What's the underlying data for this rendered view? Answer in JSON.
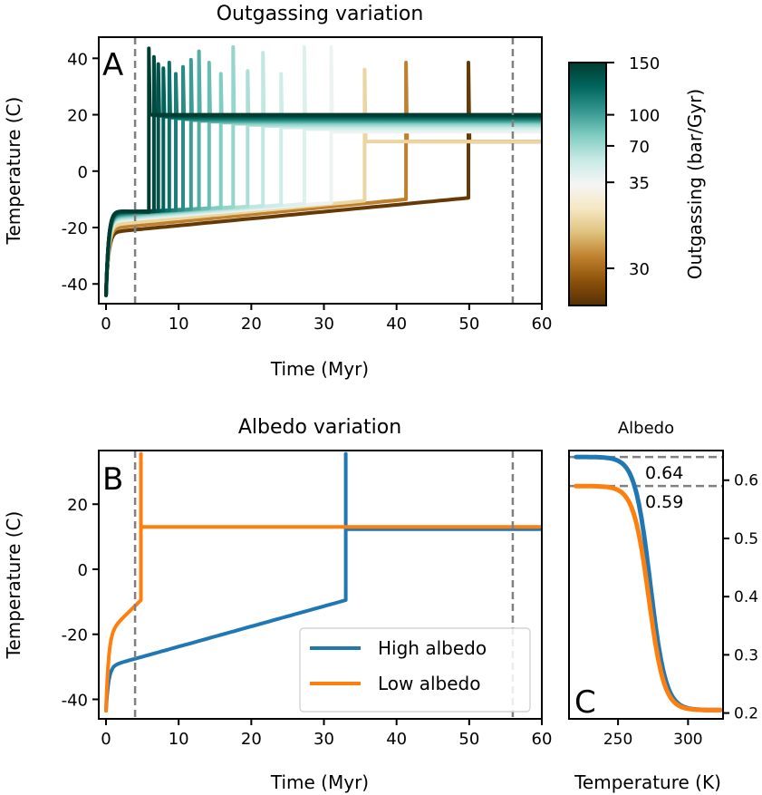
{
  "chart_data": [
    {
      "id": "A",
      "type": "line",
      "panel_label": "A",
      "title": "Outgassing variation",
      "xlabel": "Time (Myr)",
      "ylabel": "Temperature (C)",
      "xlim": [
        -1.0,
        60
      ],
      "ylim": [
        -47,
        47.5
      ],
      "xticks": [
        0,
        10,
        20,
        30,
        40,
        50,
        60
      ],
      "yticks": [
        -40,
        -20,
        0,
        20,
        40
      ],
      "vlines": [
        4,
        56
      ],
      "colorbar": {
        "label": "Outgassing (bar/Gyr)",
        "ticks": [
          {
            "label": "150",
            "pos": 1.0
          },
          {
            "label": "100",
            "pos": 0.785
          },
          {
            "label": "70",
            "pos": 0.657
          },
          {
            "label": "35",
            "pos": 0.507
          },
          {
            "label": "30",
            "pos": 0.153
          }
        ],
        "colormap": [
          "#003c30",
          "#01665e",
          "#35978f",
          "#80cdc1",
          "#c7eae5",
          "#f5f5f5",
          "#f6e8c3",
          "#dfc27d",
          "#bf812d",
          "#8c510a",
          "#543005"
        ]
      },
      "series_note": "Each run: warm-up curve from -44 C to the snowball-exit time, spike to peak, then plateau. Color encodes outgassing rate (colorbar position).",
      "series": [
        {
          "cpos": 1.0,
          "t_jump": 5.9,
          "t_pre": -14.5,
          "peak": 43.5,
          "plateau": 20.0
        },
        {
          "cpos": 0.97,
          "t_jump": 6.6,
          "t_pre": -14.3,
          "peak": 40.5,
          "plateau": 19.8
        },
        {
          "cpos": 0.94,
          "t_jump": 7.2,
          "t_pre": -14.2,
          "peak": 38.0,
          "plateau": 19.6
        },
        {
          "cpos": 0.91,
          "t_jump": 7.9,
          "t_pre": -14.0,
          "peak": 36.5,
          "plateau": 19.3
        },
        {
          "cpos": 0.88,
          "t_jump": 8.7,
          "t_pre": -13.9,
          "peak": 38.5,
          "plateau": 19.0
        },
        {
          "cpos": 0.85,
          "t_jump": 9.6,
          "t_pre": -13.8,
          "peak": 34.5,
          "plateau": 18.7
        },
        {
          "cpos": 0.82,
          "t_jump": 10.6,
          "t_pre": -13.6,
          "peak": 37.0,
          "plateau": 18.4
        },
        {
          "cpos": 0.79,
          "t_jump": 11.7,
          "t_pre": -13.5,
          "peak": 39.5,
          "plateau": 18.1
        },
        {
          "cpos": 0.76,
          "t_jump": 12.8,
          "t_pre": -13.3,
          "peak": 42.5,
          "plateau": 17.8
        },
        {
          "cpos": 0.73,
          "t_jump": 14.2,
          "t_pre": -13.1,
          "peak": 38.5,
          "plateau": 17.5
        },
        {
          "cpos": 0.7,
          "t_jump": 15.8,
          "t_pre": -12.9,
          "peak": 34.5,
          "plateau": 17.2
        },
        {
          "cpos": 0.67,
          "t_jump": 17.5,
          "t_pre": -12.7,
          "peak": 44.0,
          "plateau": 16.8
        },
        {
          "cpos": 0.64,
          "t_jump": 19.5,
          "t_pre": -12.5,
          "peak": 35.5,
          "plateau": 16.4
        },
        {
          "cpos": 0.61,
          "t_jump": 21.6,
          "t_pre": -12.3,
          "peak": 42.0,
          "plateau": 16.0
        },
        {
          "cpos": 0.58,
          "t_jump": 24.1,
          "t_pre": -12.0,
          "peak": 34.5,
          "plateau": 15.5
        },
        {
          "cpos": 0.55,
          "t_jump": 27.3,
          "t_pre": -11.6,
          "peak": 44.0,
          "plateau": 14.9
        },
        {
          "cpos": 0.52,
          "t_jump": 31.0,
          "t_pre": -11.2,
          "peak": 44.0,
          "plateau": 14.0
        },
        {
          "cpos": 0.35,
          "t_jump": 35.6,
          "t_pre": -10.5,
          "peak": 36.0,
          "plateau": 10.5
        },
        {
          "cpos": 0.2,
          "t_jump": 41.3,
          "t_pre": -10.0,
          "peak": 38.5,
          "plateau": 10.5
        },
        {
          "cpos": 0.03,
          "t_jump": 49.9,
          "t_pre": -9.5,
          "peak": 38.5,
          "plateau": 10.5
        }
      ]
    },
    {
      "id": "B",
      "type": "line",
      "panel_label": "B",
      "title": "Albedo variation",
      "xlabel": "Time (Myr)",
      "ylabel": "Temperature (C)",
      "xlim": [
        -1.0,
        60
      ],
      "ylim": [
        -46,
        36.5
      ],
      "xticks": [
        0,
        10,
        20,
        30,
        40,
        50,
        60
      ],
      "yticks": [
        -40,
        -20,
        0,
        20
      ],
      "vlines": [
        4,
        56
      ],
      "legend": {
        "position": "lower-right"
      },
      "series": [
        {
          "name": "High albedo",
          "color": "#1f77b4",
          "t_jump": 33.0,
          "t_pre": -9.5,
          "start": -43.5,
          "knee": -30,
          "peak": 35.5,
          "plateau": 12.3
        },
        {
          "name": "Low albedo",
          "color": "#ff7f0e",
          "t_jump": 4.8,
          "t_pre": -9.5,
          "start": -43.5,
          "knee": -20,
          "peak": 35.5,
          "plateau": 13.0
        }
      ]
    },
    {
      "id": "C",
      "type": "line",
      "panel_label": "C",
      "title": "Albedo",
      "xlabel": "Temperature (K)",
      "ylabel": "",
      "xlim": [
        215,
        325
      ],
      "ylim": [
        0.19,
        0.651
      ],
      "xticks": [
        250,
        300
      ],
      "yticks": [
        0.2,
        0.3,
        0.4,
        0.5,
        0.6
      ],
      "ytick_labels": [
        "0.2",
        "0.3",
        "0.4",
        "0.5",
        "0.6"
      ],
      "hlines": [
        {
          "value": 0.64,
          "label": "0.64"
        },
        {
          "value": 0.59,
          "label": "0.59"
        }
      ],
      "series": [
        {
          "name": "High albedo",
          "color": "#1f77b4",
          "a_max": 0.64,
          "a_min": 0.205,
          "T_mid": 273,
          "width": 5.5,
          "T_range": [
            220,
            323
          ]
        },
        {
          "name": "Low albedo",
          "color": "#ff7f0e",
          "a_max": 0.59,
          "a_min": 0.205,
          "T_mid": 272,
          "width": 5.5,
          "T_range": [
            220,
            323
          ]
        }
      ]
    }
  ]
}
